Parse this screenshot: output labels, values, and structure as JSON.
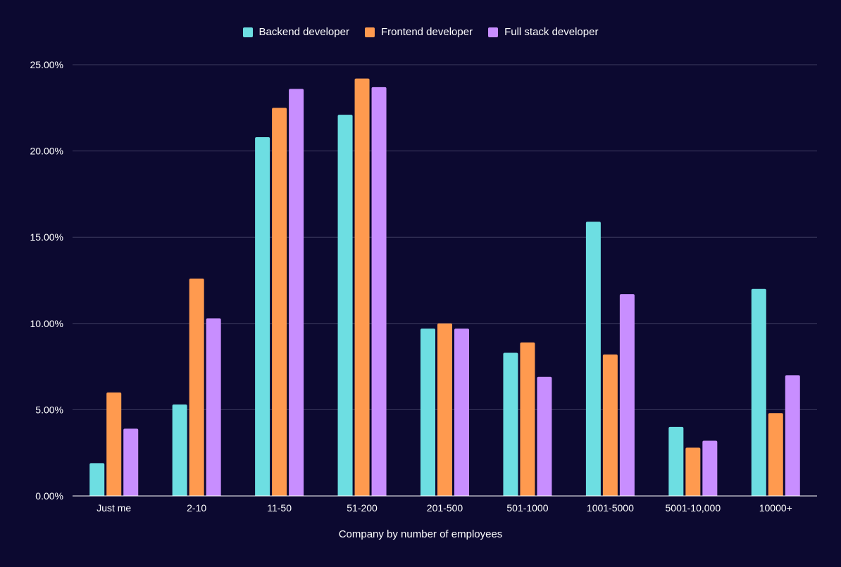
{
  "colors": {
    "background": "#0c0930",
    "gridline": "#3c3a5e",
    "axis": "#ffffff",
    "text": "#ffffff"
  },
  "chart_data": {
    "type": "bar",
    "title": "",
    "xlabel": "Company by number of employees",
    "ylabel": "",
    "ylim": [
      0,
      25
    ],
    "yticks": [
      0,
      5,
      10,
      15,
      20,
      25
    ],
    "ytick_labels": [
      "0.00%",
      "5.00%",
      "10.00%",
      "15.00%",
      "20.00%",
      "25.00%"
    ],
    "grid": true,
    "legend_position": "top-center",
    "categories": [
      "Just me",
      "2-10",
      "11-50",
      "51-200",
      "201-500",
      "501-1000",
      "1001-5000",
      "5001-10,000",
      "10000+"
    ],
    "series": [
      {
        "name": "Backend developer",
        "color": "#6ddee2",
        "values": [
          1.9,
          5.3,
          20.8,
          22.1,
          9.7,
          8.3,
          15.9,
          4.0,
          12.0
        ]
      },
      {
        "name": "Frontend developer",
        "color": "#ff9a4f",
        "values": [
          6.0,
          12.6,
          22.5,
          24.2,
          10.0,
          8.9,
          8.2,
          2.8,
          4.8
        ]
      },
      {
        "name": "Full stack developer",
        "color": "#c88eff",
        "values": [
          3.9,
          10.3,
          23.6,
          23.7,
          9.7,
          6.9,
          11.7,
          3.2,
          7.0
        ]
      }
    ]
  }
}
